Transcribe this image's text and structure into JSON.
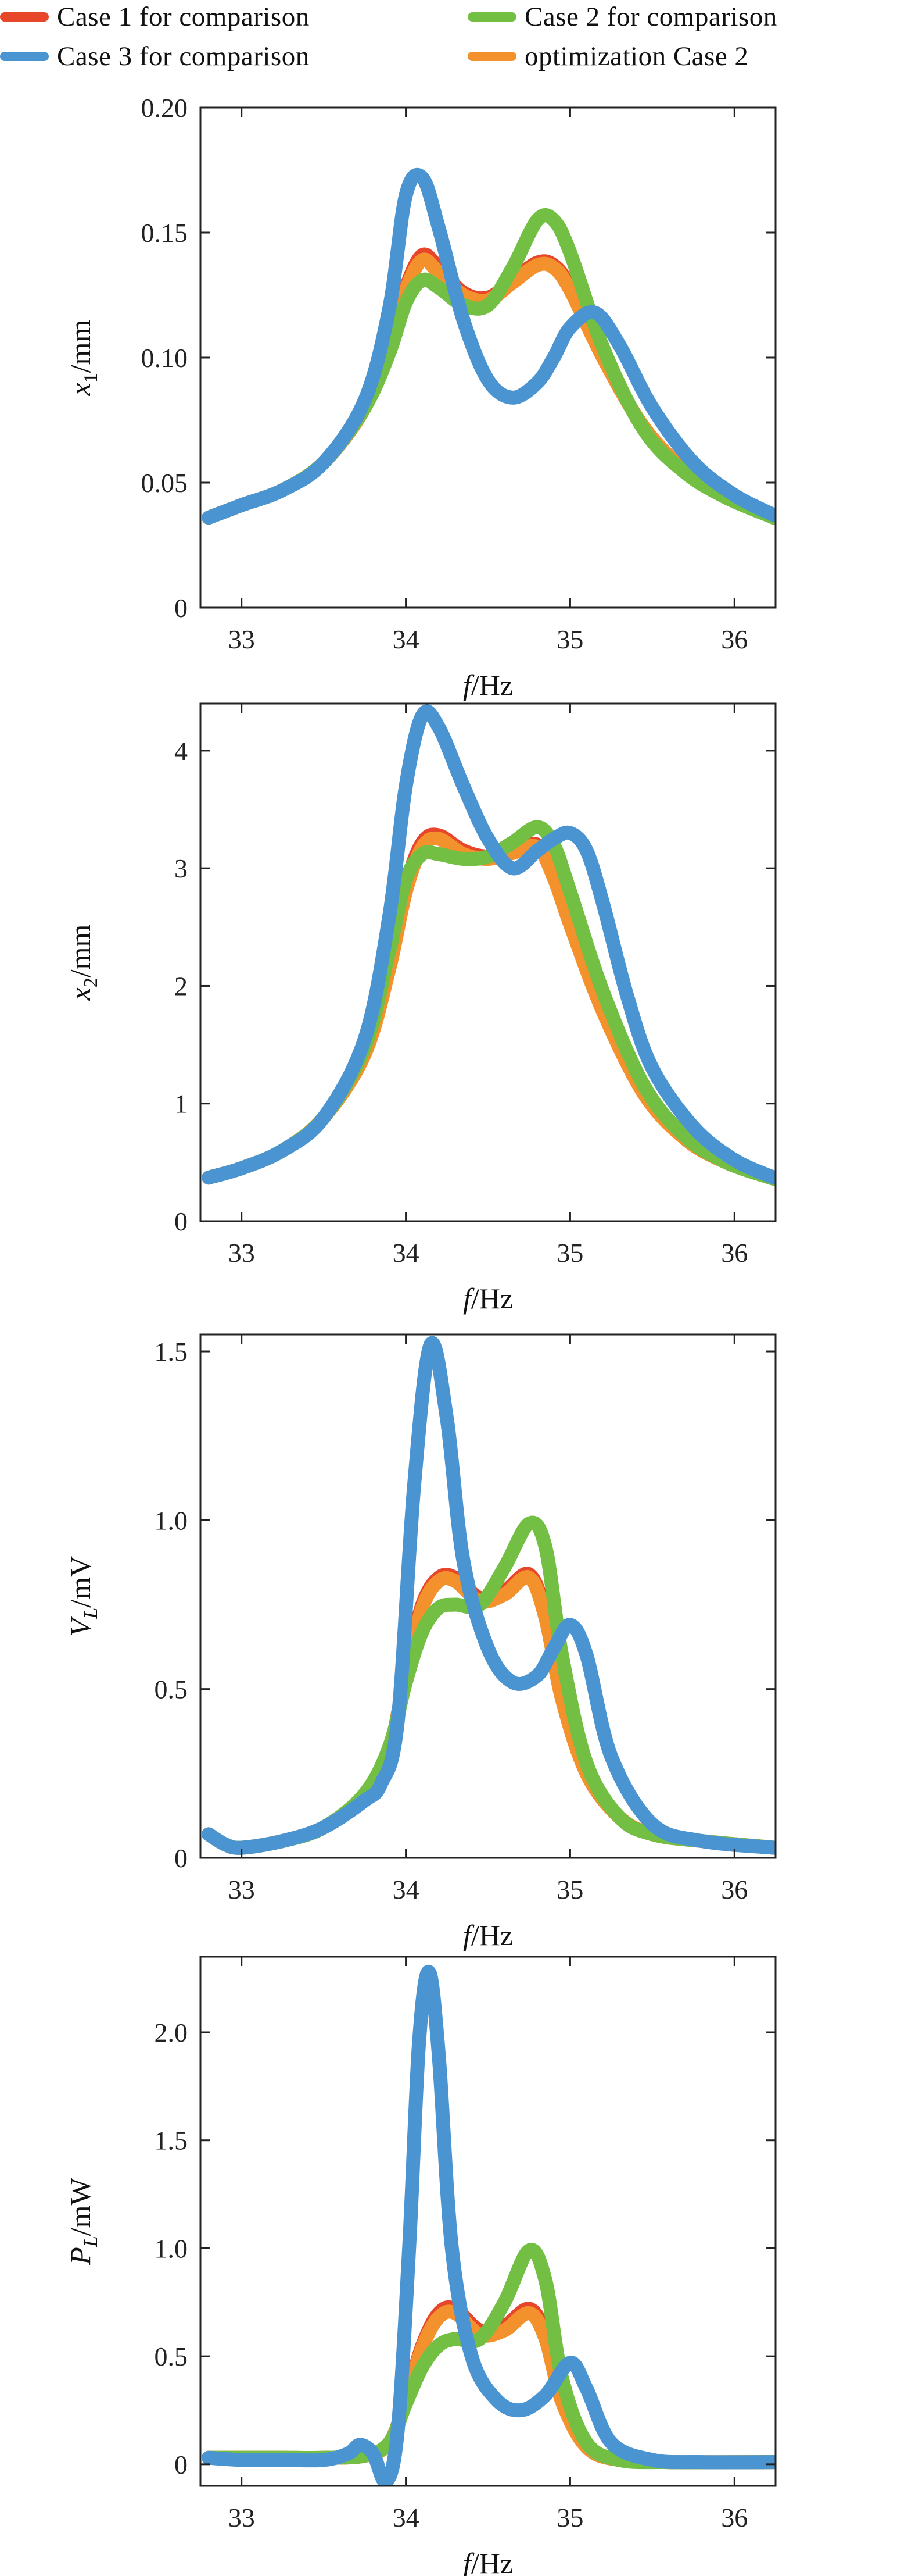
{
  "legend": {
    "entries": [
      {
        "label": "Case 1 for comparison",
        "color": "#e8462a"
      },
      {
        "label": "Case 2 for comparison",
        "color": "#72bf44"
      },
      {
        "label": "Case 3 for comparison",
        "color": "#4b94d2"
      },
      {
        "label": "optimization Case 2",
        "color": "#f3922d"
      }
    ]
  },
  "chart_data": [
    {
      "type": "line",
      "xlabel_italic": "f",
      "xlabel_rest": "/Hz",
      "ylabel_italic": "x",
      "ylabel_sub": "1",
      "ylabel_rest": "/mm",
      "xlim": [
        32.75,
        36.25
      ],
      "ylim": [
        0,
        0.2
      ],
      "xticks": [
        33,
        34,
        35,
        36
      ],
      "yticks": [
        0,
        0.05,
        0.1,
        0.15,
        0.2
      ],
      "ytick_labels": [
        "0",
        "0.05",
        "0.10",
        "0.15",
        "0.20"
      ],
      "series": [
        {
          "legend_index": 0,
          "x": [
            32.8,
            33.0,
            33.25,
            33.5,
            33.75,
            33.9,
            34.0,
            34.1,
            34.2,
            34.35,
            34.5,
            34.65,
            34.8,
            34.9,
            35.0,
            35.2,
            35.45,
            35.7,
            35.95,
            36.24
          ],
          "y": [
            0.036,
            0.041,
            0.047,
            0.058,
            0.08,
            0.106,
            0.128,
            0.141,
            0.136,
            0.126,
            0.124,
            0.131,
            0.138,
            0.137,
            0.128,
            0.1,
            0.072,
            0.055,
            0.045,
            0.036
          ]
        },
        {
          "legend_index": 3,
          "x": [
            32.8,
            33.0,
            33.25,
            33.5,
            33.75,
            33.9,
            34.0,
            34.1,
            34.2,
            34.35,
            34.5,
            34.65,
            34.8,
            34.9,
            35.0,
            35.2,
            35.45,
            35.7,
            35.95,
            36.24
          ],
          "y": [
            0.036,
            0.041,
            0.047,
            0.058,
            0.08,
            0.105,
            0.127,
            0.139,
            0.134,
            0.125,
            0.123,
            0.13,
            0.137,
            0.136,
            0.127,
            0.1,
            0.072,
            0.055,
            0.045,
            0.036
          ]
        },
        {
          "legend_index": 1,
          "x": [
            32.8,
            33.0,
            33.25,
            33.5,
            33.75,
            33.9,
            34.0,
            34.1,
            34.2,
            34.35,
            34.5,
            34.65,
            34.8,
            34.9,
            35.0,
            35.2,
            35.45,
            35.7,
            35.95,
            36.24
          ],
          "y": [
            0.036,
            0.041,
            0.047,
            0.058,
            0.08,
            0.102,
            0.122,
            0.131,
            0.128,
            0.121,
            0.121,
            0.136,
            0.155,
            0.155,
            0.142,
            0.104,
            0.071,
            0.054,
            0.044,
            0.036
          ]
        },
        {
          "legend_index": 2,
          "x": [
            32.8,
            33.0,
            33.25,
            33.5,
            33.75,
            33.9,
            34.0,
            34.1,
            34.2,
            34.35,
            34.5,
            34.65,
            34.8,
            34.9,
            35.0,
            35.15,
            35.3,
            35.5,
            35.75,
            36.0,
            36.24
          ],
          "y": [
            0.036,
            0.041,
            0.047,
            0.058,
            0.083,
            0.12,
            0.165,
            0.172,
            0.152,
            0.115,
            0.091,
            0.084,
            0.09,
            0.1,
            0.112,
            0.118,
            0.105,
            0.08,
            0.058,
            0.045,
            0.037
          ]
        }
      ]
    },
    {
      "type": "line",
      "xlabel_italic": "f",
      "xlabel_rest": "/Hz",
      "ylabel_italic": "x",
      "ylabel_sub": "2",
      "ylabel_rest": "/mm",
      "xlim": [
        32.75,
        36.25
      ],
      "ylim": [
        0,
        4.4
      ],
      "xticks": [
        33,
        34,
        35,
        36
      ],
      "yticks": [
        0,
        1,
        2,
        3,
        4
      ],
      "ytick_labels": [
        "0",
        "1",
        "2",
        "3",
        "4"
      ],
      "series": [
        {
          "legend_index": 0,
          "x": [
            32.8,
            33.0,
            33.25,
            33.5,
            33.75,
            33.9,
            34.0,
            34.1,
            34.2,
            34.35,
            34.5,
            34.65,
            34.8,
            34.9,
            35.0,
            35.2,
            35.45,
            35.7,
            35.95,
            36.24
          ],
          "y": [
            0.37,
            0.45,
            0.6,
            0.88,
            1.45,
            2.2,
            2.85,
            3.22,
            3.28,
            3.15,
            3.1,
            3.15,
            3.2,
            2.95,
            2.55,
            1.8,
            1.1,
            0.7,
            0.5,
            0.36
          ]
        },
        {
          "legend_index": 3,
          "x": [
            32.8,
            33.0,
            33.25,
            33.5,
            33.75,
            33.9,
            34.0,
            34.1,
            34.2,
            34.35,
            34.5,
            34.65,
            34.8,
            34.9,
            35.0,
            35.2,
            35.45,
            35.7,
            35.95,
            36.24
          ],
          "y": [
            0.37,
            0.45,
            0.6,
            0.88,
            1.42,
            2.15,
            2.8,
            3.18,
            3.25,
            3.12,
            3.08,
            3.13,
            3.18,
            2.92,
            2.52,
            1.78,
            1.08,
            0.7,
            0.5,
            0.36
          ]
        },
        {
          "legend_index": 1,
          "x": [
            32.8,
            33.0,
            33.25,
            33.5,
            33.75,
            33.9,
            34.0,
            34.1,
            34.2,
            34.35,
            34.5,
            34.65,
            34.8,
            34.9,
            35.0,
            35.2,
            35.45,
            35.7,
            35.95,
            36.24
          ],
          "y": [
            0.37,
            0.45,
            0.6,
            0.88,
            1.48,
            2.3,
            2.9,
            3.12,
            3.12,
            3.08,
            3.1,
            3.22,
            3.35,
            3.2,
            2.8,
            1.95,
            1.15,
            0.72,
            0.5,
            0.36
          ]
        },
        {
          "legend_index": 2,
          "x": [
            32.8,
            33.0,
            33.25,
            33.5,
            33.75,
            33.9,
            34.0,
            34.1,
            34.2,
            34.35,
            34.5,
            34.65,
            34.8,
            34.9,
            35.0,
            35.1,
            35.2,
            35.35,
            35.5,
            35.75,
            36.0,
            36.24
          ],
          "y": [
            0.37,
            0.45,
            0.6,
            0.88,
            1.55,
            2.6,
            3.7,
            4.3,
            4.2,
            3.7,
            3.25,
            3.0,
            3.15,
            3.25,
            3.3,
            3.15,
            2.7,
            1.9,
            1.3,
            0.8,
            0.52,
            0.37
          ]
        }
      ]
    },
    {
      "type": "line",
      "xlabel_italic": "f",
      "xlabel_rest": "/Hz",
      "ylabel_italic": "V",
      "ylabel_sub": "L",
      "ylabel_rest": "/mV",
      "xlim": [
        32.75,
        36.25
      ],
      "ylim": [
        0,
        1.55
      ],
      "xticks": [
        33,
        34,
        35,
        36
      ],
      "yticks": [
        0,
        0.5,
        1.0,
        1.5
      ],
      "ytick_labels": [
        "0",
        "0.5",
        "1.0",
        "1.5"
      ],
      "series": [
        {
          "legend_index": 0,
          "x": [
            32.8,
            32.9,
            33.0,
            33.25,
            33.5,
            33.75,
            33.9,
            34.0,
            34.1,
            34.2,
            34.3,
            34.45,
            34.6,
            34.75,
            34.85,
            34.95,
            35.1,
            35.3,
            35.5,
            35.8,
            36.24
          ],
          "y": [
            0.07,
            0.04,
            0.03,
            0.05,
            0.09,
            0.18,
            0.32,
            0.55,
            0.75,
            0.83,
            0.83,
            0.77,
            0.79,
            0.84,
            0.72,
            0.48,
            0.25,
            0.12,
            0.07,
            0.05,
            0.03
          ]
        },
        {
          "legend_index": 3,
          "x": [
            32.8,
            32.9,
            33.0,
            33.25,
            33.5,
            33.75,
            33.9,
            34.0,
            34.1,
            34.2,
            34.3,
            34.45,
            34.6,
            34.75,
            34.85,
            34.95,
            35.1,
            35.3,
            35.5,
            35.8,
            36.24
          ],
          "y": [
            0.07,
            0.04,
            0.03,
            0.05,
            0.09,
            0.18,
            0.32,
            0.54,
            0.74,
            0.82,
            0.82,
            0.76,
            0.78,
            0.83,
            0.71,
            0.47,
            0.25,
            0.12,
            0.07,
            0.05,
            0.03
          ]
        },
        {
          "legend_index": 1,
          "x": [
            32.8,
            32.9,
            33.0,
            33.25,
            33.5,
            33.75,
            33.9,
            34.0,
            34.1,
            34.2,
            34.3,
            34.45,
            34.6,
            34.75,
            34.85,
            34.95,
            35.1,
            35.3,
            35.5,
            35.8,
            36.24
          ],
          "y": [
            0.07,
            0.04,
            0.03,
            0.05,
            0.09,
            0.19,
            0.33,
            0.52,
            0.67,
            0.74,
            0.75,
            0.75,
            0.86,
            0.99,
            0.92,
            0.6,
            0.28,
            0.12,
            0.07,
            0.05,
            0.03
          ]
        },
        {
          "legend_index": 2,
          "x": [
            32.8,
            32.9,
            33.0,
            33.25,
            33.5,
            33.75,
            33.85,
            33.95,
            34.05,
            34.15,
            34.25,
            34.35,
            34.5,
            34.65,
            34.8,
            34.9,
            35.0,
            35.1,
            35.25,
            35.5,
            35.8,
            36.24
          ],
          "y": [
            0.07,
            0.04,
            0.03,
            0.05,
            0.09,
            0.17,
            0.22,
            0.4,
            1.1,
            1.52,
            1.3,
            0.88,
            0.62,
            0.52,
            0.54,
            0.62,
            0.69,
            0.6,
            0.3,
            0.1,
            0.05,
            0.03
          ]
        }
      ]
    },
    {
      "type": "line",
      "xlabel_italic": "f",
      "xlabel_rest": "/Hz",
      "ylabel_italic": "P",
      "ylabel_sub": "L",
      "ylabel_rest": "/mW",
      "xlim": [
        32.75,
        36.25
      ],
      "ylim": [
        -0.1,
        2.35
      ],
      "xticks": [
        33,
        34,
        35,
        36
      ],
      "yticks": [
        0,
        0.5,
        1.0,
        1.5,
        2.0
      ],
      "ytick_labels": [
        "0",
        "0.5",
        "1.0",
        "1.5",
        "2.0"
      ],
      "series": [
        {
          "legend_index": 0,
          "x": [
            32.8,
            33.0,
            33.25,
            33.5,
            33.75,
            33.9,
            34.0,
            34.1,
            34.2,
            34.3,
            34.45,
            34.6,
            34.75,
            34.85,
            34.95,
            35.1,
            35.3,
            35.6,
            36.24
          ],
          "y": [
            0.03,
            0.03,
            0.03,
            0.03,
            0.04,
            0.1,
            0.3,
            0.55,
            0.7,
            0.72,
            0.62,
            0.64,
            0.72,
            0.6,
            0.3,
            0.08,
            0.02,
            0.01,
            0.01
          ]
        },
        {
          "legend_index": 3,
          "x": [
            32.8,
            33.0,
            33.25,
            33.5,
            33.75,
            33.9,
            34.0,
            34.1,
            34.2,
            34.3,
            34.45,
            34.6,
            34.75,
            34.85,
            34.95,
            35.1,
            35.3,
            35.6,
            36.24
          ],
          "y": [
            0.03,
            0.03,
            0.03,
            0.03,
            0.04,
            0.1,
            0.29,
            0.54,
            0.68,
            0.7,
            0.6,
            0.62,
            0.7,
            0.58,
            0.29,
            0.08,
            0.02,
            0.01,
            0.01
          ]
        },
        {
          "legend_index": 1,
          "x": [
            32.8,
            33.0,
            33.25,
            33.5,
            33.75,
            33.9,
            34.0,
            34.1,
            34.2,
            34.3,
            34.45,
            34.6,
            34.75,
            34.85,
            34.95,
            35.1,
            35.3,
            35.6,
            36.24
          ],
          "y": [
            0.03,
            0.03,
            0.03,
            0.03,
            0.04,
            0.1,
            0.28,
            0.45,
            0.55,
            0.58,
            0.58,
            0.75,
            0.99,
            0.85,
            0.4,
            0.1,
            0.02,
            0.01,
            0.01
          ]
        },
        {
          "legend_index": 2,
          "x": [
            32.8,
            33.0,
            33.25,
            33.5,
            33.65,
            33.72,
            33.8,
            33.88,
            33.95,
            34.02,
            34.08,
            34.14,
            34.2,
            34.28,
            34.4,
            34.55,
            34.7,
            34.85,
            35.0,
            35.1,
            35.25,
            35.5,
            35.8,
            36.24
          ],
          "y": [
            0.03,
            0.02,
            0.02,
            0.02,
            0.05,
            0.09,
            0.05,
            -0.08,
            0.15,
            1.0,
            1.95,
            2.28,
            1.9,
            1.0,
            0.5,
            0.3,
            0.25,
            0.32,
            0.47,
            0.35,
            0.1,
            0.02,
            0.01,
            0.01
          ]
        }
      ]
    }
  ]
}
